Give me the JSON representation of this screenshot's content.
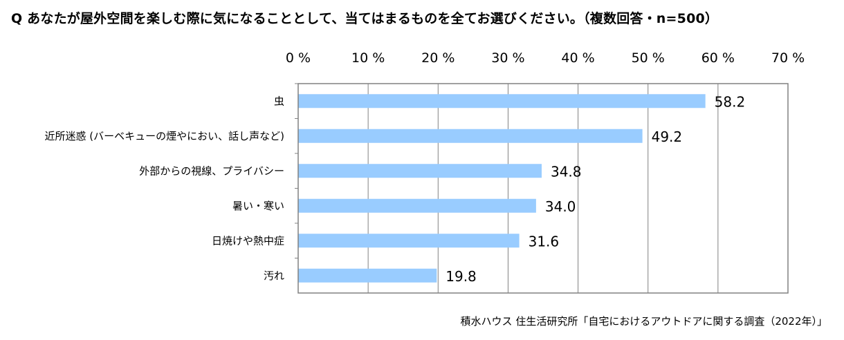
{
  "title": "Q あなたが屋外空間を楽しむ際に気になることとして、当てはまるものを全てお選びください。（複数回答・n=500）",
  "source": "積水ハウス 住生活研究所「自宅におけるアウトドアに関する調査（2022年）」",
  "colors": {
    "bar": "#99ccff",
    "grid": "#808080",
    "frame": "#808080"
  },
  "chart_data": {
    "type": "bar",
    "orientation": "horizontal",
    "categories": [
      "虫",
      "近所迷惑 (バーベキューの煙やにおい、話し声など)",
      "外部からの視線、プライバシー",
      "暑い・寒い",
      "日焼けや熱中症",
      "汚れ"
    ],
    "values": [
      58.2,
      49.2,
      34.8,
      34.0,
      31.6,
      19.8
    ],
    "value_labels": [
      "58.2",
      "49.2",
      "34.8",
      "34.0",
      "31.6",
      "19.8"
    ],
    "xlim": [
      0,
      70
    ],
    "xticks": [
      0,
      10,
      20,
      30,
      40,
      50,
      60,
      70
    ],
    "xtick_labels": [
      "0 %",
      "10 %",
      "20 %",
      "30 %",
      "40 %",
      "50 %",
      "60 %",
      "70 %"
    ],
    "xaxis_position": "top",
    "grid": true,
    "legend": "none"
  }
}
